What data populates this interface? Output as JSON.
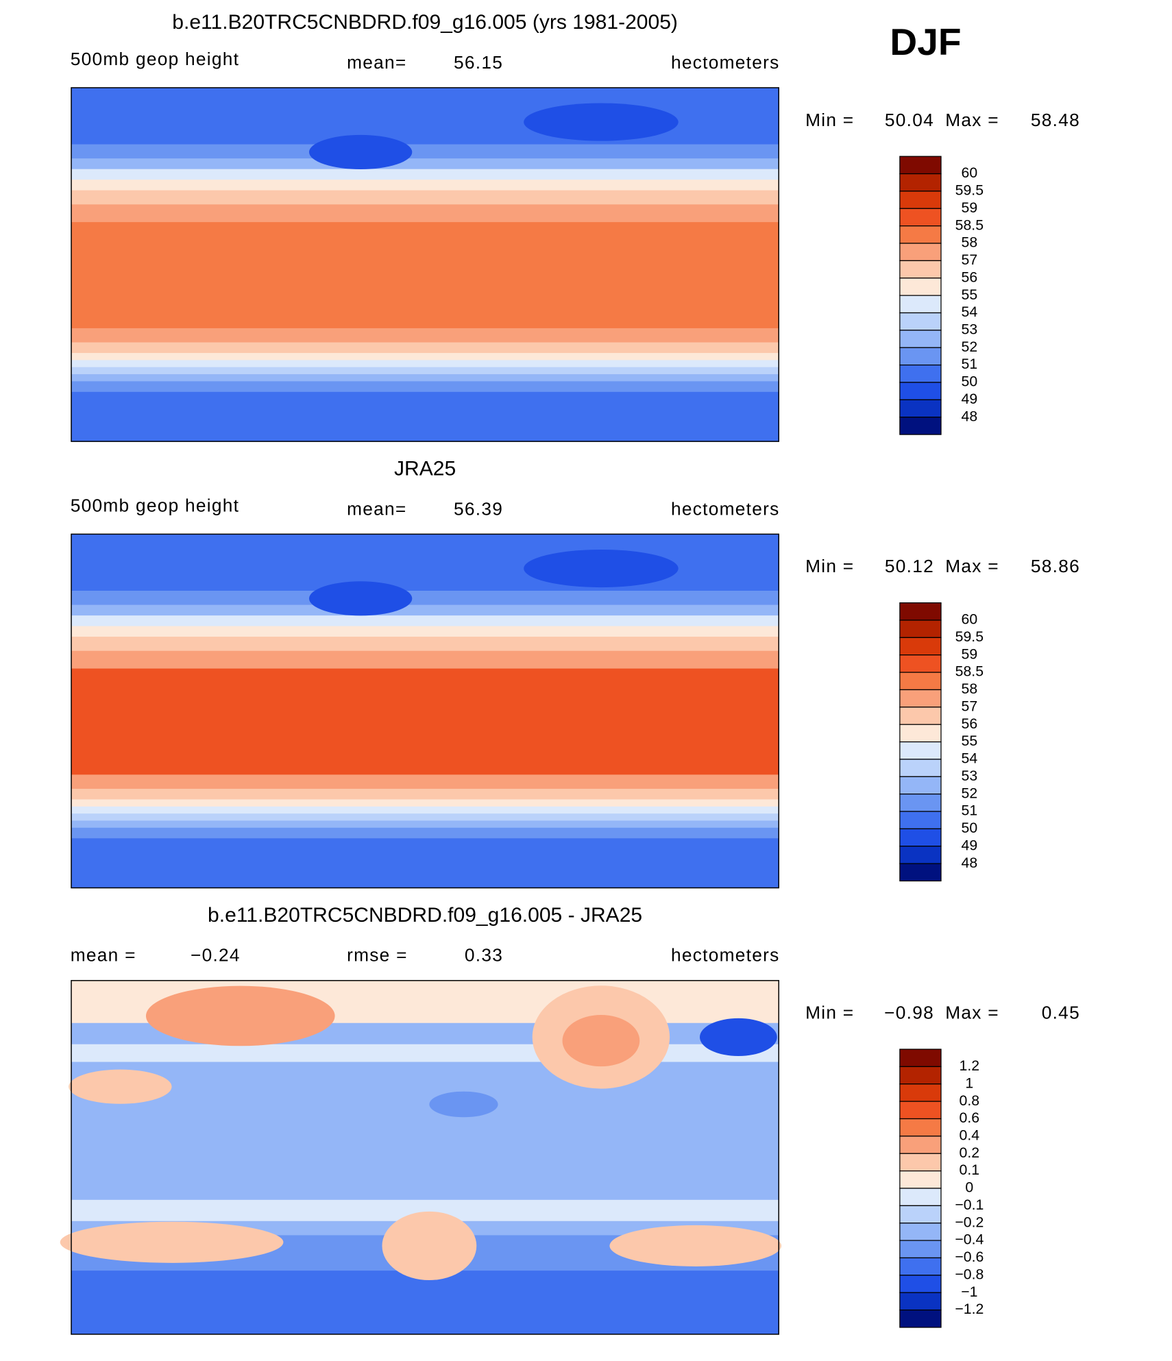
{
  "header": {
    "season": "DJF"
  },
  "panels": [
    {
      "title": "b.e11.B20TRC5CNBDRD.f09_g16.005 (yrs 1981-2005)",
      "left_text": "500mb geop height",
      "center_label": "mean=",
      "center_value": "56.15",
      "units": "hectometers",
      "min_label": "Min =",
      "min": "50.04",
      "max_label": "Max =",
      "max": "58.48",
      "colorbar": {
        "labels": [
          "60",
          "59.5",
          "59",
          "58.5",
          "58",
          "57",
          "56",
          "55",
          "54",
          "53",
          "52",
          "51",
          "50",
          "49",
          "48"
        ],
        "colors": [
          "#7f0a00",
          "#b32300",
          "#d93a0a",
          "#ee5222",
          "#f57a45",
          "#f9a07a",
          "#fcc8ab",
          "#fde8d8",
          "#dce9fb",
          "#bad2fa",
          "#94b6f7",
          "#6a95f2",
          "#3f70ef",
          "#1f4fe6",
          "#0a33c2",
          "#00117f"
        ]
      }
    },
    {
      "title": "JRA25",
      "left_text": "500mb geop height",
      "center_label": "mean=",
      "center_value": "56.39",
      "units": "hectometers",
      "min_label": "Min =",
      "min": "50.12",
      "max_label": "Max =",
      "max": "58.86",
      "colorbar": {
        "labels": [
          "60",
          "59.5",
          "59",
          "58.5",
          "58",
          "57",
          "56",
          "55",
          "54",
          "53",
          "52",
          "51",
          "50",
          "49",
          "48"
        ],
        "colors": [
          "#7f0a00",
          "#b32300",
          "#d93a0a",
          "#ee5222",
          "#f57a45",
          "#f9a07a",
          "#fcc8ab",
          "#fde8d8",
          "#dce9fb",
          "#bad2fa",
          "#94b6f7",
          "#6a95f2",
          "#3f70ef",
          "#1f4fe6",
          "#0a33c2",
          "#00117f"
        ]
      }
    },
    {
      "title": "b.e11.B20TRC5CNBDRD.f09_g16.005 - JRA25",
      "left_label": "mean =",
      "left_value": "−0.24",
      "center_label": "rmse =",
      "center_value": "0.33",
      "units": "hectometers",
      "min_label": "Min =",
      "min": "−0.98",
      "max_label": "Max =",
      "max": "0.45",
      "colorbar": {
        "labels": [
          "1.2",
          "1",
          "0.8",
          "0.6",
          "0.4",
          "0.2",
          "0.1",
          "0",
          "−0.1",
          "−0.2",
          "−0.4",
          "−0.6",
          "−0.8",
          "−1",
          "−1.2"
        ],
        "colors": [
          "#7f0a00",
          "#b32300",
          "#d93a0a",
          "#ee5222",
          "#f57a45",
          "#f9a07a",
          "#fcc8ab",
          "#fde8d8",
          "#dce9fb",
          "#bad2fa",
          "#94b6f7",
          "#6a95f2",
          "#3f70ef",
          "#1f4fe6",
          "#0a33c2",
          "#00117f"
        ]
      }
    }
  ]
}
